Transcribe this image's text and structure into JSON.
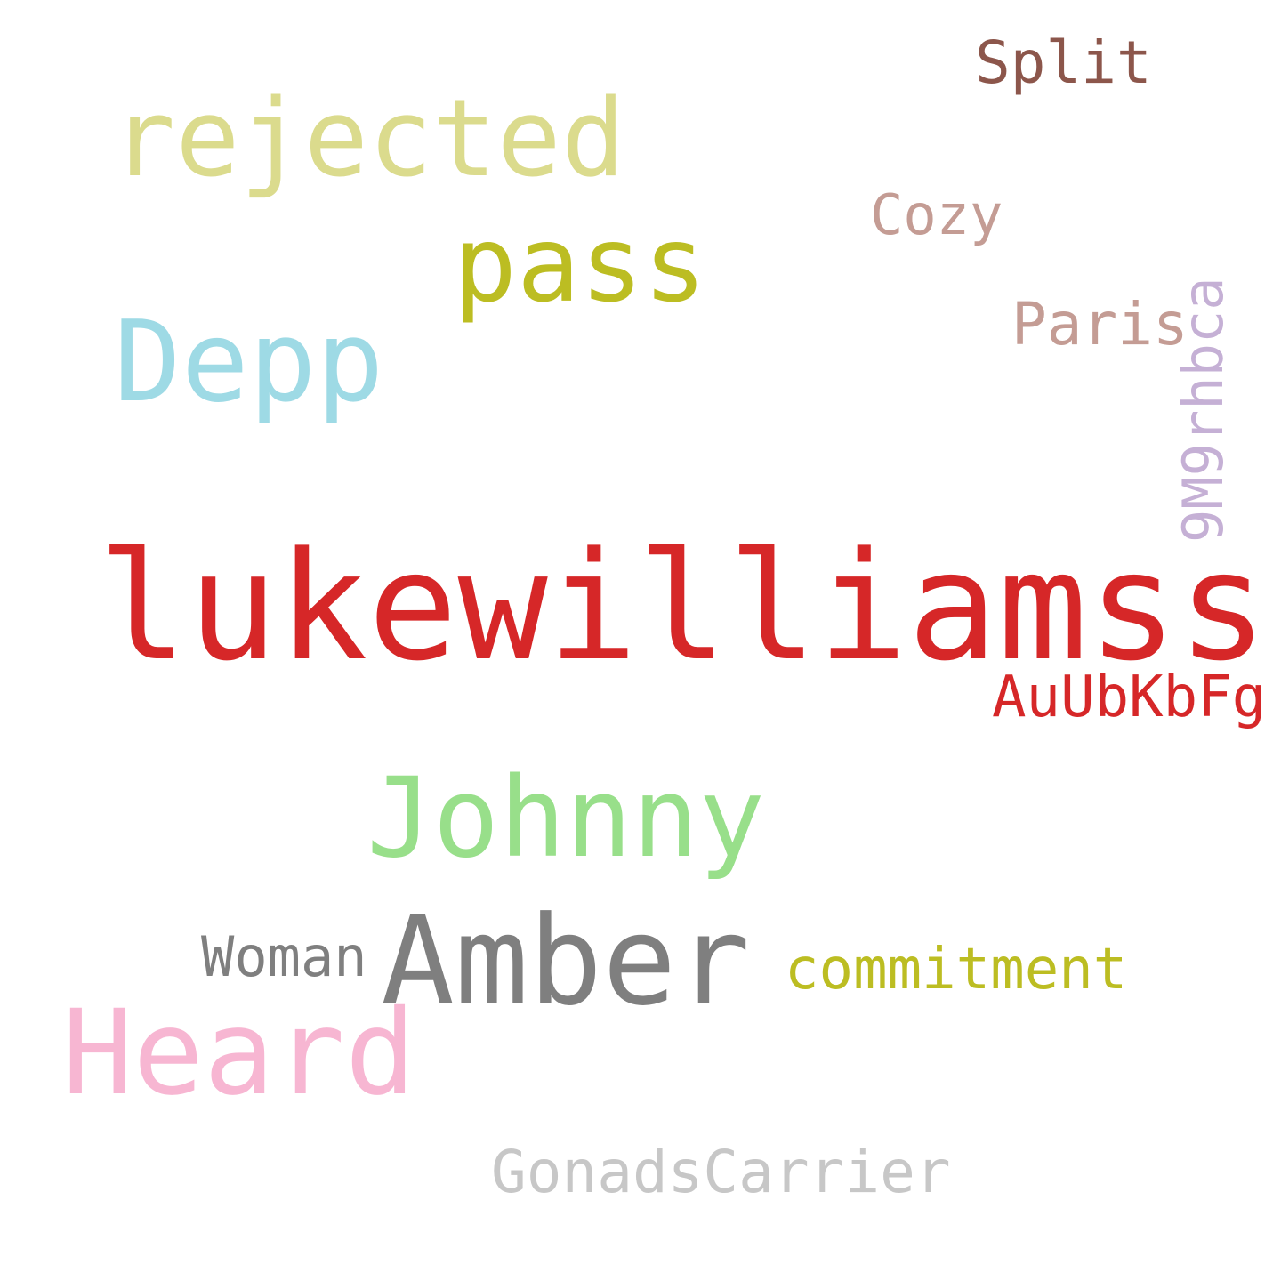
{
  "cloud": {
    "words": [
      {
        "text": "lukewilliamss",
        "color": "#d62728"
      },
      {
        "text": "rejected",
        "color": "#dbdb8d"
      },
      {
        "text": "pass",
        "color": "#bcbd22"
      },
      {
        "text": "Depp",
        "color": "#9edae5"
      },
      {
        "text": "Split",
        "color": "#8c564b"
      },
      {
        "text": "Cozy",
        "color": "#c49c94"
      },
      {
        "text": "Paris",
        "color": "#c49c94"
      },
      {
        "text": "9M9rhbca",
        "color": "#c5b0d5",
        "orientation": "vertical"
      },
      {
        "text": "AuUbKbFg",
        "color": "#d62728"
      },
      {
        "text": "Johnny",
        "color": "#98df8a"
      },
      {
        "text": "Woman",
        "color": "#7f7f7f"
      },
      {
        "text": "Amber",
        "color": "#7f7f7f"
      },
      {
        "text": "commitment",
        "color": "#bcbd22"
      },
      {
        "text": "Heard",
        "color": "#f7b6d2"
      },
      {
        "text": "GonadsCarrier",
        "color": "#c7c7c7"
      }
    ]
  }
}
